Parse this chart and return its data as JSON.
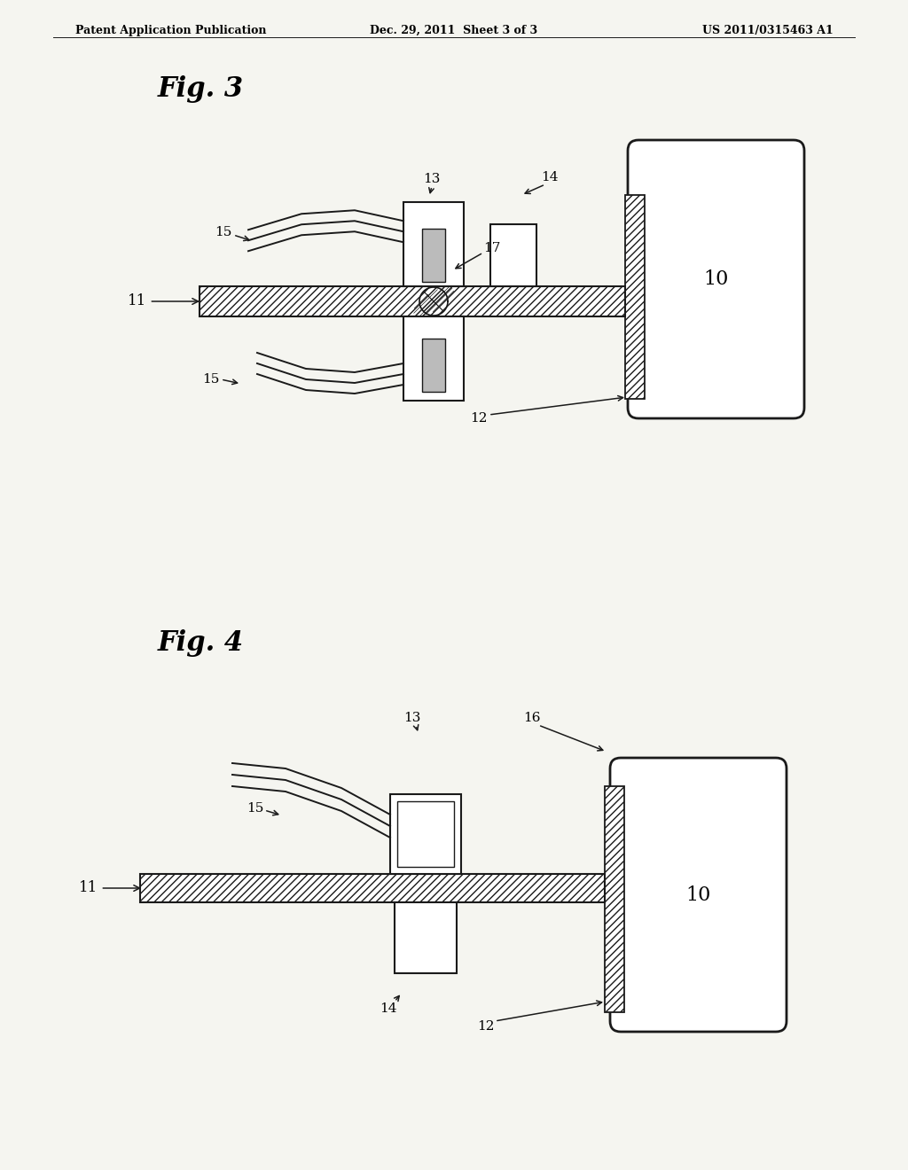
{
  "bg_color": "#f5f5f0",
  "line_color": "#1a1a1a",
  "header_left": "Patent Application Publication",
  "header_center": "Dec. 29, 2011  Sheet 3 of 3",
  "header_right": "US 2011/0315463 A1",
  "fig3_label": "Fig. 3",
  "fig4_label": "Fig. 4"
}
